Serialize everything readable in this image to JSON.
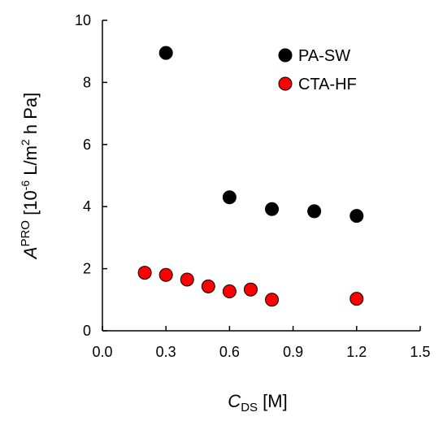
{
  "chart_data": {
    "type": "scatter",
    "title": "",
    "xlabel": {
      "main": "C",
      "sub": "DS",
      "rest": " [M]"
    },
    "ylabel": {
      "main": "A",
      "sup": "PRO",
      "unit_pre": "[10",
      "unit_exp": "-6",
      "unit_mid": " L/m",
      "unit_exp2": "2",
      "unit_post": " h Pa]"
    },
    "xlim": [
      0.0,
      1.5
    ],
    "ylim": [
      0,
      10
    ],
    "xticks": [
      0.0,
      0.3,
      0.6,
      0.9,
      1.2,
      1.5
    ],
    "xtick_labels": [
      "0.0",
      "0.3",
      "0.6",
      "0.9",
      "1.2",
      "1.5"
    ],
    "yticks": [
      0,
      2,
      4,
      6,
      8,
      10
    ],
    "ytick_labels": [
      "0",
      "2",
      "4",
      "6",
      "8",
      "10"
    ],
    "grid": false,
    "legend_position": "top-right",
    "series": [
      {
        "name": "PA-SW",
        "color": "#000000",
        "x": [
          0.3,
          0.6,
          0.8,
          1.0,
          1.2
        ],
        "y": [
          8.95,
          4.3,
          3.92,
          3.85,
          3.7
        ]
      },
      {
        "name": "CTA-HF",
        "color": "#ff0000",
        "x": [
          0.2,
          0.3,
          0.4,
          0.5,
          0.6,
          0.7,
          0.8,
          1.2
        ],
        "y": [
          1.87,
          1.8,
          1.65,
          1.43,
          1.27,
          1.33,
          1.0,
          1.03
        ]
      }
    ]
  }
}
